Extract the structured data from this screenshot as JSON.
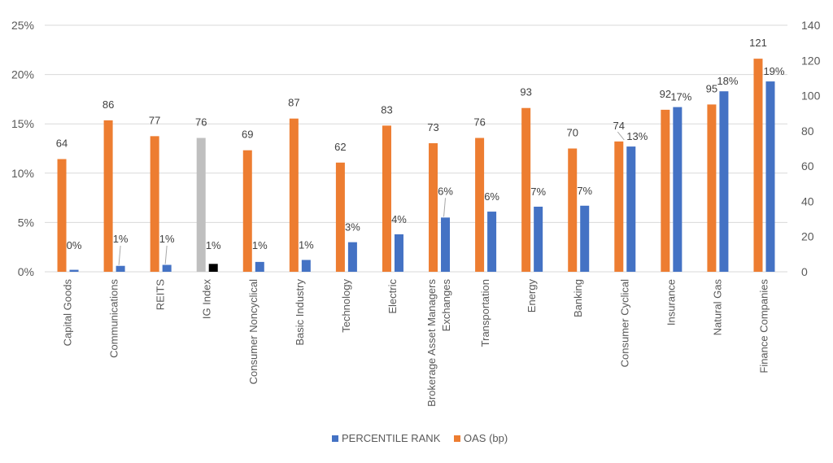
{
  "chart_data": {
    "type": "bar",
    "categories": [
      [
        "Capital Goods"
      ],
      [
        "Communications"
      ],
      [
        "REITS"
      ],
      [
        "IG Index"
      ],
      [
        "Consumer Noncyclical"
      ],
      [
        "Basic Industry"
      ],
      [
        "Technology"
      ],
      [
        "Electric"
      ],
      [
        "Brokerage Asset Managers",
        "Exchanges"
      ],
      [
        "Transportation"
      ],
      [
        "Energy"
      ],
      [
        "Banking"
      ],
      [
        "Consumer Cyclical"
      ],
      [
        "Insurance"
      ],
      [
        "Natural Gas"
      ],
      [
        "Finance Companies"
      ]
    ],
    "series": [
      {
        "name": "OAS (bp)",
        "axis": "right",
        "color": "#ED7D31",
        "values": [
          64,
          86,
          77,
          76,
          69,
          87,
          62,
          83,
          73,
          76,
          93,
          70,
          74,
          92,
          95,
          121
        ],
        "labels": [
          "64",
          "86",
          "77",
          "76",
          "69",
          "87",
          "62",
          "83",
          "73",
          "76",
          "93",
          "70",
          "74",
          "92",
          "95",
          "121"
        ]
      },
      {
        "name": "PERCENTILE RANK",
        "axis": "left",
        "color": "#4472C4",
        "values": [
          0.002,
          0.006,
          0.007,
          0.008,
          0.01,
          0.012,
          0.03,
          0.038,
          0.055,
          0.061,
          0.066,
          0.067,
          0.127,
          0.167,
          0.183,
          0.193
        ],
        "labels": [
          "0%",
          "1%",
          "1%",
          "1%",
          "1%",
          "1%",
          "3%",
          "4%",
          "6%",
          "6%",
          "7%",
          "7%",
          "13%",
          "17%",
          "18%",
          "19%"
        ]
      }
    ],
    "highlight": {
      "category_index": 3,
      "oas_color": "#BFBFBF",
      "rank_color": "#000000"
    },
    "left_axis": {
      "ylim": [
        0,
        0.25
      ],
      "ticks": [
        0,
        0.05,
        0.1,
        0.15,
        0.2,
        0.25
      ],
      "tick_labels": [
        "0%",
        "5%",
        "10%",
        "15%",
        "20%",
        "25%"
      ]
    },
    "right_axis": {
      "ylim": [
        0,
        140
      ],
      "ticks": [
        0,
        20,
        40,
        60,
        80,
        100,
        120,
        140
      ],
      "tick_labels": [
        "0",
        "20",
        "40",
        "60",
        "80",
        "100",
        "120",
        "140"
      ]
    },
    "grid": true,
    "legend": {
      "position": "bottom-center",
      "entries": [
        {
          "name": "PERCENTILE RANK",
          "color": "#4472C4"
        },
        {
          "name": "OAS (bp)",
          "color": "#ED7D31"
        }
      ]
    }
  }
}
